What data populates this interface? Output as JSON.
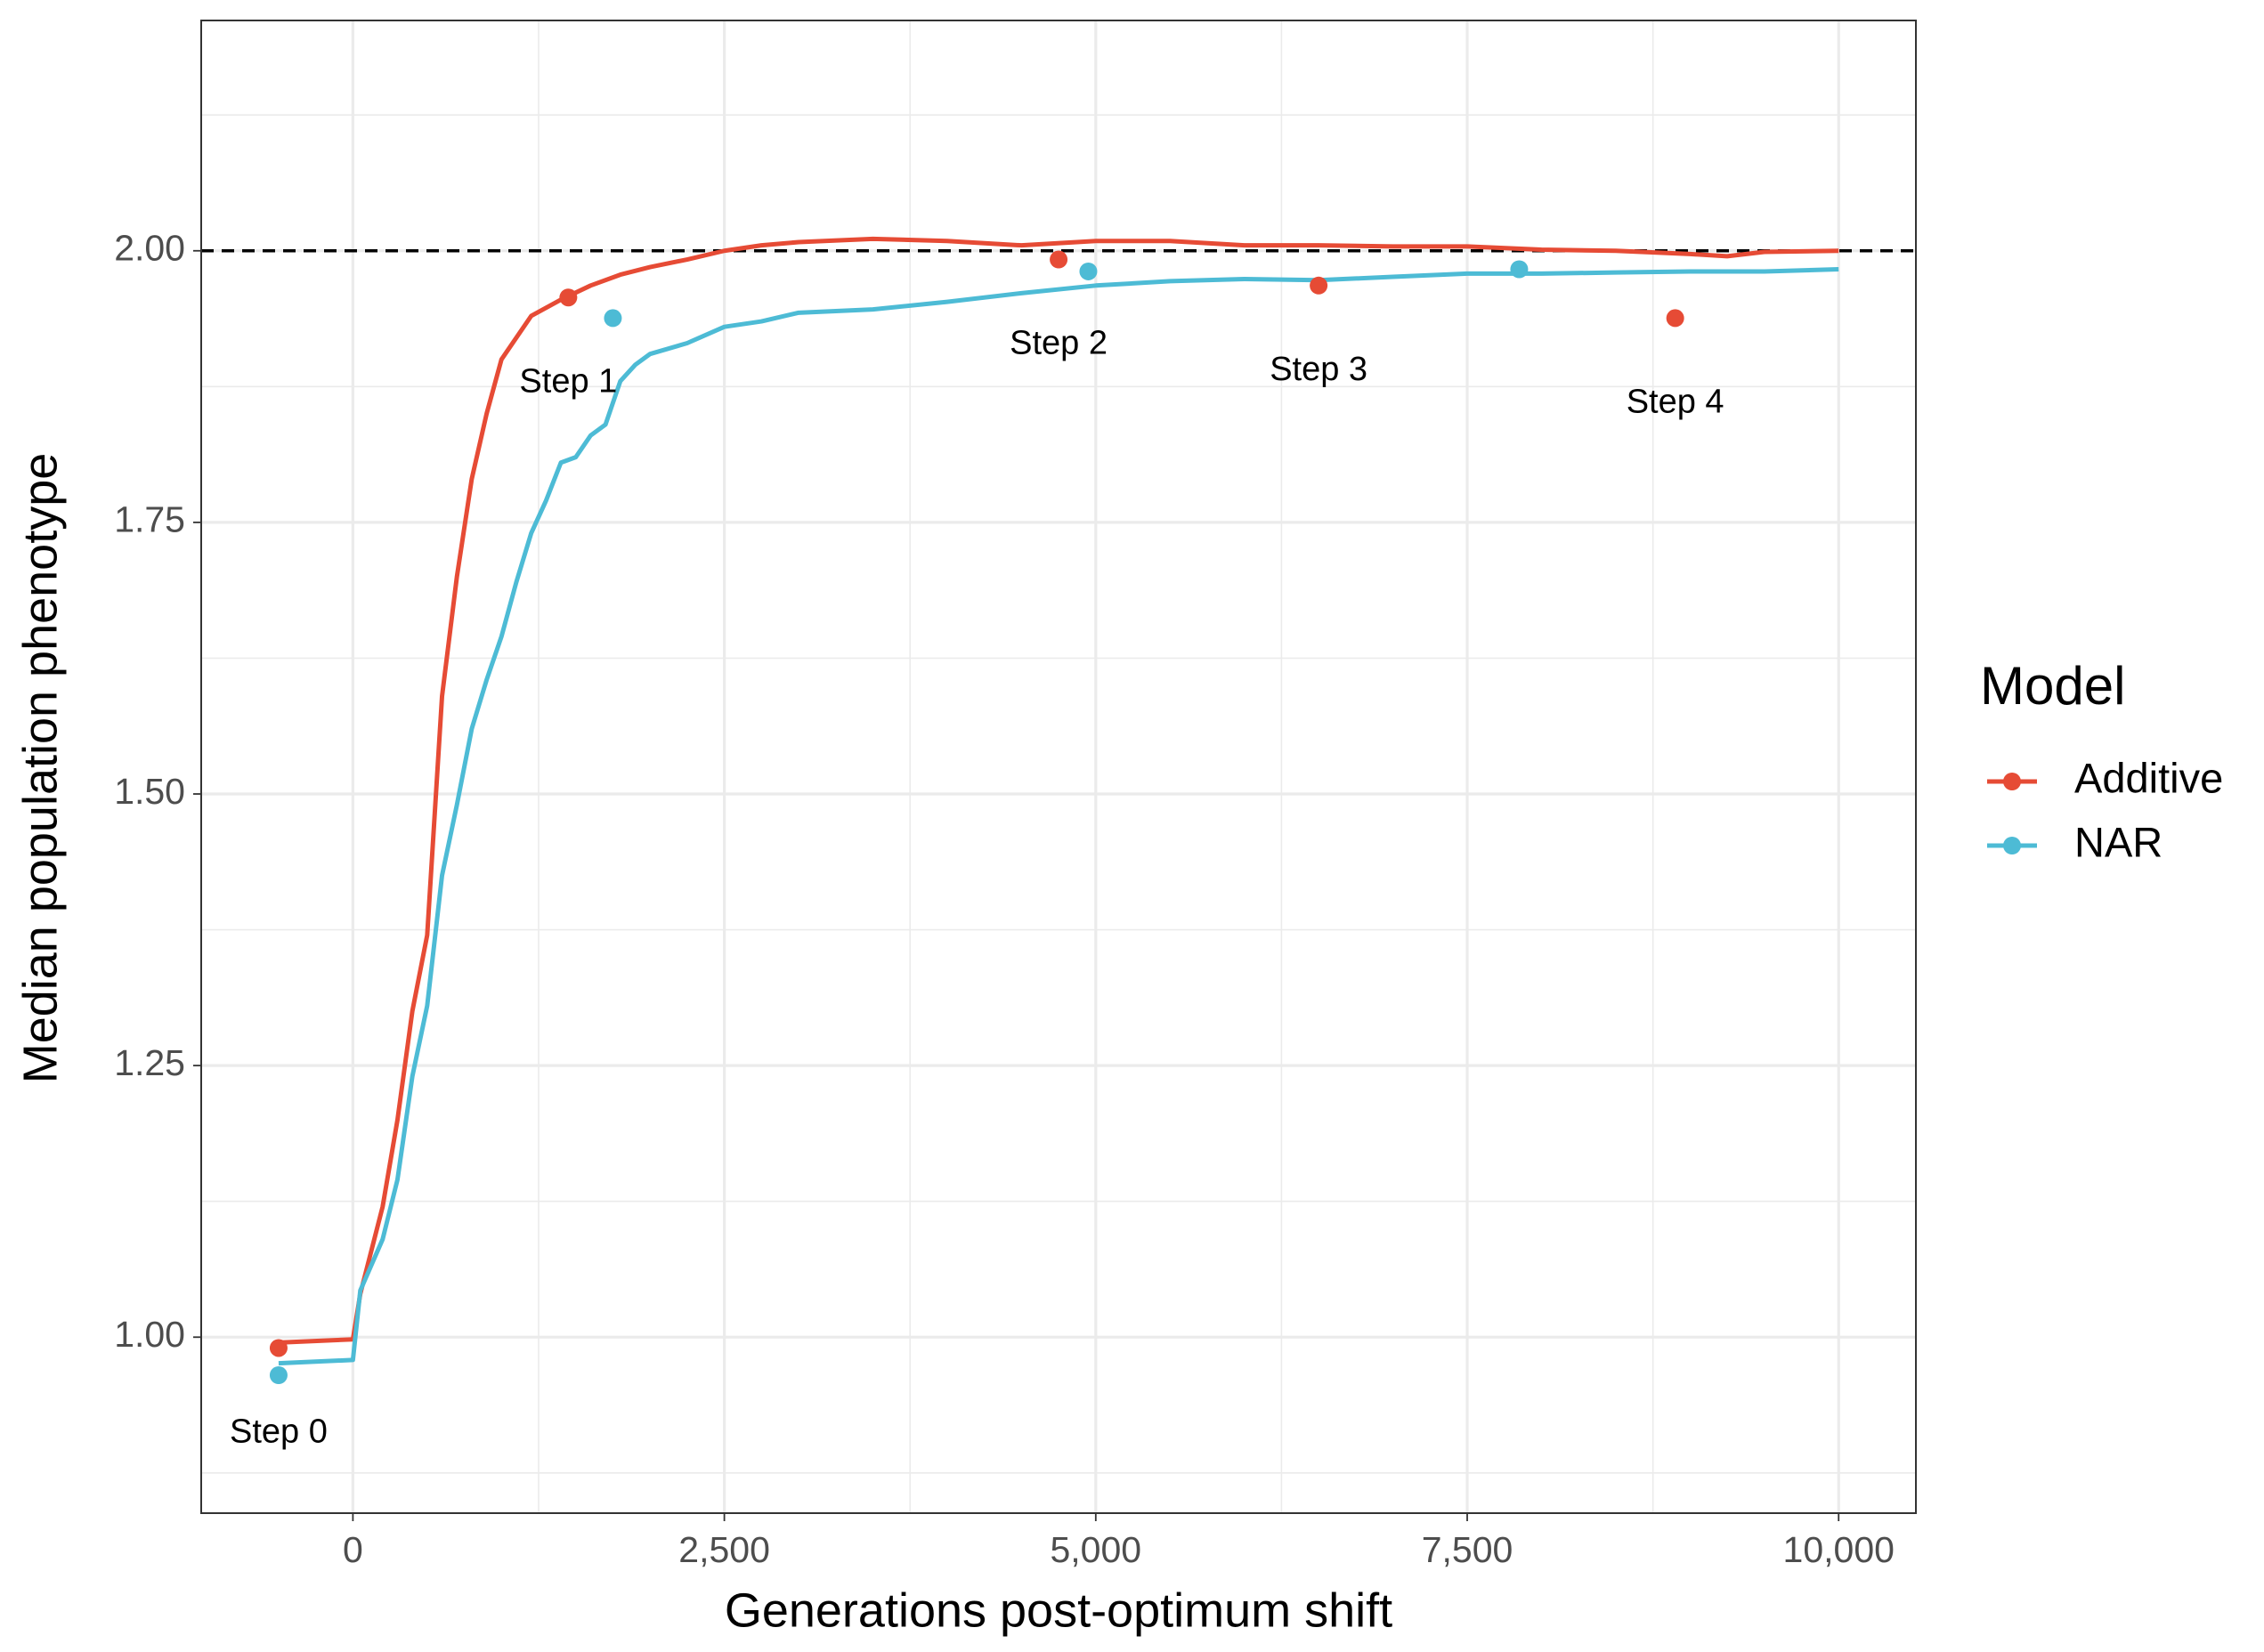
{
  "chart_data": {
    "type": "line",
    "x_label": "Generations post-optimum shift",
    "y_label": "Median population phenotype",
    "legend_title": "Model",
    "legend_position": "right",
    "xlim": [
      -1021,
      10520
    ],
    "ylim": [
      0.838,
      2.212
    ],
    "xticks": [
      {
        "value": 0,
        "label": "0"
      },
      {
        "value": 2500,
        "label": "2,500"
      },
      {
        "value": 5000,
        "label": "5,000"
      },
      {
        "value": 7500,
        "label": "7,500"
      },
      {
        "value": 10000,
        "label": "10,000"
      }
    ],
    "xminorticks": [
      1250,
      3750,
      6250,
      8750
    ],
    "yticks": [
      {
        "value": 1,
        "label": "1.00"
      },
      {
        "value": 1.25,
        "label": "1.25"
      },
      {
        "value": 1.5,
        "label": "1.50"
      },
      {
        "value": 1.75,
        "label": "1.75"
      },
      {
        "value": 2,
        "label": "2.00"
      }
    ],
    "yminorticks": [
      0.875,
      1.125,
      1.375,
      1.625,
      1.875,
      2.125
    ],
    "grid": true,
    "hline": 2,
    "annotations": [
      "Step 0",
      "Step 1",
      "Step 2",
      "Step 3",
      "Step 4"
    ],
    "series": [
      {
        "name": "Additive",
        "color": "#E64B35",
        "x": [
          -500,
          0,
          50,
          200,
          300,
          400,
          500,
          600,
          700,
          800,
          900,
          1000,
          1200,
          1400,
          1600,
          1800,
          2000,
          2250,
          2500,
          2750,
          3000,
          3500,
          4000,
          4500,
          5000,
          5500,
          6000,
          6500,
          7000,
          7500,
          8000,
          8500,
          9000,
          9250,
          9500,
          10000
        ],
        "values": [
          0.995,
          0.998,
          1.04,
          1.12,
          1.2,
          1.3,
          1.37,
          1.59,
          1.7,
          1.79,
          1.85,
          1.9,
          1.94,
          1.955,
          1.968,
          1.978,
          1.985,
          1.992,
          2.0,
          2.005,
          2.008,
          2.011,
          2.009,
          2.005,
          2.009,
          2.009,
          2.005,
          2.005,
          2.004,
          2.004,
          2.001,
          2.0,
          1.997,
          1.995,
          1.999,
          2.0
        ],
        "step_x": [
          -500,
          1450,
          4750,
          6500,
          8900
        ],
        "step_values": [
          0.99,
          1.957,
          1.992,
          1.968,
          1.938
        ]
      },
      {
        "name": "NAR",
        "color": "#4DBBD5",
        "x": [
          -500,
          0,
          50,
          200,
          300,
          400,
          500,
          600,
          700,
          800,
          900,
          1000,
          1100,
          1200,
          1300,
          1400,
          1500,
          1600,
          1700,
          1800,
          1900,
          2000,
          2250,
          2500,
          2750,
          3000,
          3500,
          4000,
          4500,
          5000,
          5500,
          6000,
          6500,
          7000,
          7500,
          8000,
          8500,
          9000,
          9500,
          10000
        ],
        "values": [
          0.976,
          0.979,
          1.043,
          1.09,
          1.145,
          1.24,
          1.305,
          1.425,
          1.49,
          1.56,
          1.605,
          1.645,
          1.695,
          1.74,
          1.77,
          1.805,
          1.81,
          1.83,
          1.84,
          1.88,
          1.895,
          1.905,
          1.915,
          1.93,
          1.935,
          1.943,
          1.946,
          1.953,
          1.961,
          1.968,
          1.972,
          1.974,
          1.973,
          1.976,
          1.979,
          1.979,
          1.98,
          1.981,
          1.981,
          1.983
        ],
        "step_x": [
          -500,
          1750,
          4950,
          7850
        ],
        "step_values": [
          0.965,
          1.938,
          1.981,
          1.983
        ]
      }
    ]
  }
}
